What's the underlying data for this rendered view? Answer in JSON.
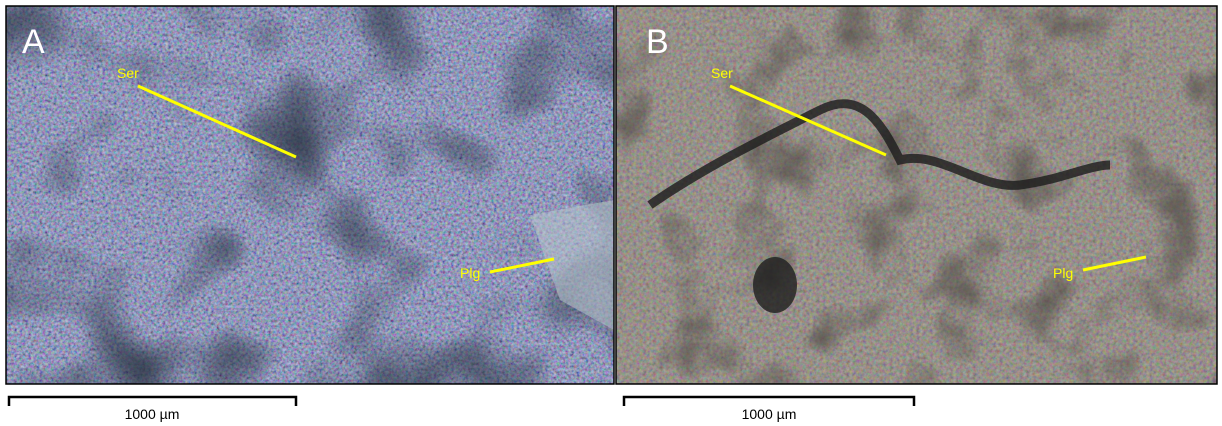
{
  "panels": [
    {
      "label": "A",
      "annotations": [
        "Ser",
        "Plg"
      ],
      "scale_bar": "1000 µm"
    },
    {
      "label": "B",
      "annotations": [
        "Ser",
        "Plg"
      ],
      "scale_bar": "1000 µm"
    }
  ]
}
